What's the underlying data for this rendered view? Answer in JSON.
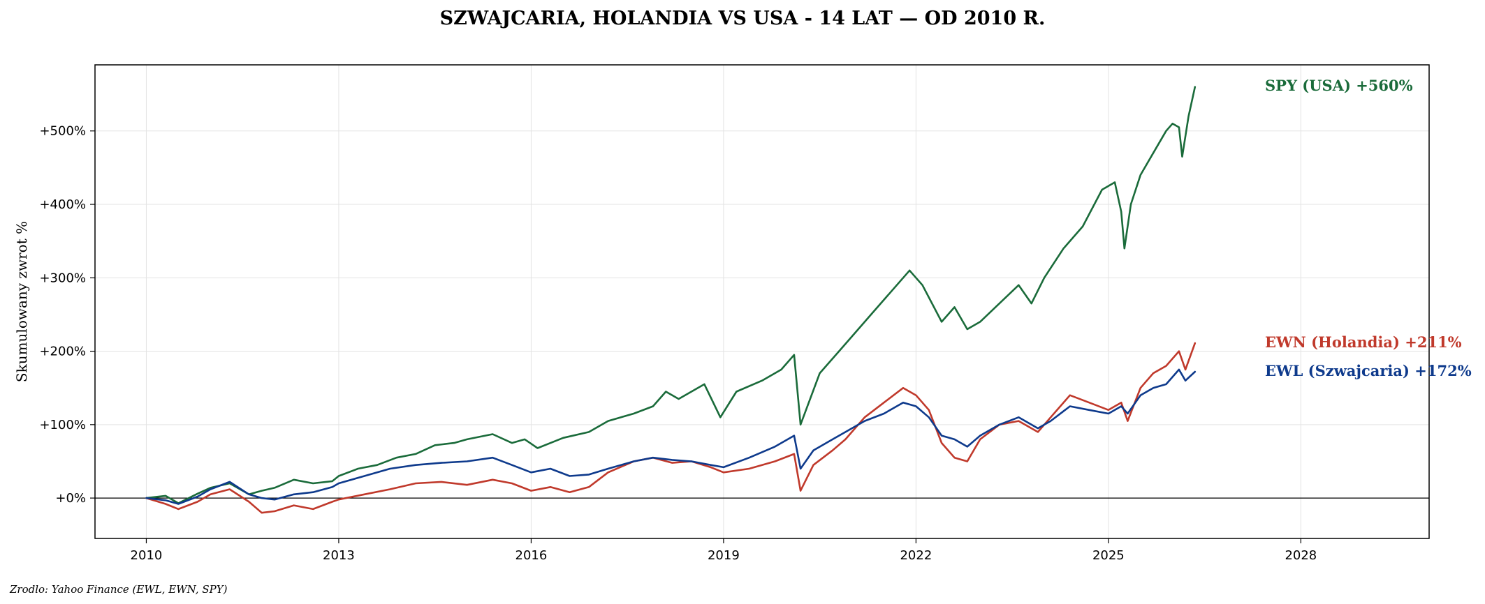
{
  "chart_data": {
    "type": "line",
    "title": "SZWAJCARIA, HOLANDIA VS USA - 14 LAT — OD 2010 R.",
    "ylabel": "Skumulowany zwrot %",
    "xlabel": "",
    "source": "Zrodlo: Yahoo Finance (EWL, EWN, SPY)",
    "xlim": [
      2009.2,
      2030.0
    ],
    "ylim": [
      -55,
      590
    ],
    "x_ticks": [
      2010,
      2013,
      2016,
      2019,
      2022,
      2025,
      2028
    ],
    "x_tick_labels": [
      "2010",
      "2013",
      "2016",
      "2019",
      "2022",
      "2025",
      "2028"
    ],
    "y_ticks": [
      0,
      100,
      200,
      300,
      400,
      500
    ],
    "y_tick_labels": [
      "+0%",
      "+100%",
      "+200%",
      "+300%",
      "+400%",
      "+500%"
    ],
    "grid": true,
    "zero_line": true,
    "series": [
      {
        "name": "SPY (USA)",
        "label": "SPY (USA)  +560%",
        "color": "#1a6b3a",
        "x": [
          2010.0,
          2010.3,
          2010.5,
          2010.8,
          2011.0,
          2011.3,
          2011.6,
          2011.8,
          2012.0,
          2012.3,
          2012.6,
          2012.9,
          2013.0,
          2013.3,
          2013.6,
          2013.9,
          2014.2,
          2014.5,
          2014.8,
          2015.0,
          2015.4,
          2015.7,
          2015.9,
          2016.1,
          2016.5,
          2016.9,
          2017.2,
          2017.6,
          2017.9,
          2018.1,
          2018.3,
          2018.7,
          2018.95,
          2019.2,
          2019.6,
          2019.9,
          2020.1,
          2020.2,
          2020.5,
          2020.8,
          2021.0,
          2021.3,
          2021.6,
          2021.9,
          2022.1,
          2022.4,
          2022.6,
          2022.8,
          2023.0,
          2023.3,
          2023.6,
          2023.8,
          2024.0,
          2024.3,
          2024.6,
          2024.9,
          2025.1,
          2025.2,
          2025.25,
          2025.35,
          2025.5,
          2025.7,
          2025.9,
          2026.0,
          2026.1,
          2026.15,
          2026.25,
          2026.35
        ],
        "values": [
          0,
          3,
          -7,
          6,
          14,
          20,
          5,
          10,
          14,
          25,
          20,
          23,
          30,
          40,
          45,
          55,
          60,
          72,
          75,
          80,
          87,
          75,
          80,
          68,
          82,
          90,
          105,
          115,
          125,
          145,
          135,
          155,
          110,
          145,
          160,
          175,
          195,
          100,
          170,
          200,
          220,
          250,
          280,
          310,
          290,
          240,
          260,
          230,
          240,
          265,
          290,
          265,
          300,
          340,
          370,
          420,
          430,
          390,
          340,
          400,
          440,
          470,
          500,
          510,
          505,
          465,
          520,
          560
        ]
      },
      {
        "name": "EWN (Holandia)",
        "label": "EWN (Holandia)  +211%",
        "color": "#c0392b",
        "x": [
          2010.0,
          2010.3,
          2010.5,
          2010.8,
          2011.0,
          2011.3,
          2011.6,
          2011.8,
          2012.0,
          2012.3,
          2012.6,
          2012.9,
          2013.0,
          2013.4,
          2013.8,
          2014.2,
          2014.6,
          2015.0,
          2015.4,
          2015.7,
          2016.0,
          2016.3,
          2016.6,
          2016.9,
          2017.2,
          2017.6,
          2017.9,
          2018.2,
          2018.5,
          2018.8,
          2019.0,
          2019.4,
          2019.8,
          2020.1,
          2020.2,
          2020.4,
          2020.7,
          2020.9,
          2021.2,
          2021.5,
          2021.8,
          2022.0,
          2022.2,
          2022.4,
          2022.6,
          2022.8,
          2023.0,
          2023.3,
          2023.6,
          2023.9,
          2024.1,
          2024.4,
          2024.7,
          2025.0,
          2025.2,
          2025.3,
          2025.5,
          2025.7,
          2025.9,
          2026.1,
          2026.2,
          2026.35
        ],
        "values": [
          0,
          -8,
          -15,
          -5,
          5,
          12,
          -5,
          -20,
          -18,
          -10,
          -15,
          -5,
          -2,
          5,
          12,
          20,
          22,
          18,
          25,
          20,
          10,
          15,
          8,
          15,
          35,
          50,
          55,
          48,
          50,
          42,
          35,
          40,
          50,
          60,
          10,
          45,
          65,
          80,
          110,
          130,
          150,
          140,
          120,
          75,
          55,
          50,
          80,
          100,
          105,
          90,
          110,
          140,
          130,
          120,
          130,
          105,
          150,
          170,
          180,
          200,
          175,
          211
        ]
      },
      {
        "name": "EWL (Szwajcaria)",
        "label": "EWL (Szwajcaria)  +172%",
        "color": "#0e3a8c",
        "x": [
          2010.0,
          2010.3,
          2010.5,
          2010.8,
          2011.0,
          2011.3,
          2011.6,
          2011.8,
          2012.0,
          2012.3,
          2012.6,
          2012.9,
          2013.0,
          2013.4,
          2013.8,
          2014.2,
          2014.6,
          2015.0,
          2015.4,
          2015.7,
          2016.0,
          2016.3,
          2016.6,
          2016.9,
          2017.2,
          2017.6,
          2017.9,
          2018.2,
          2018.5,
          2018.8,
          2019.0,
          2019.4,
          2019.8,
          2020.1,
          2020.2,
          2020.4,
          2020.7,
          2020.9,
          2021.2,
          2021.5,
          2021.8,
          2022.0,
          2022.2,
          2022.4,
          2022.6,
          2022.8,
          2023.0,
          2023.3,
          2023.6,
          2023.9,
          2024.1,
          2024.4,
          2024.7,
          2025.0,
          2025.2,
          2025.3,
          2025.5,
          2025.7,
          2025.9,
          2026.1,
          2026.2,
          2026.35
        ],
        "values": [
          0,
          -3,
          -8,
          2,
          12,
          22,
          5,
          0,
          -2,
          5,
          8,
          15,
          20,
          30,
          40,
          45,
          48,
          50,
          55,
          45,
          35,
          40,
          30,
          32,
          40,
          50,
          55,
          52,
          50,
          45,
          42,
          55,
          70,
          85,
          40,
          65,
          80,
          90,
          105,
          115,
          130,
          125,
          110,
          85,
          80,
          70,
          85,
          100,
          110,
          95,
          105,
          125,
          120,
          115,
          125,
          115,
          140,
          150,
          155,
          175,
          160,
          172
        ]
      }
    ]
  }
}
